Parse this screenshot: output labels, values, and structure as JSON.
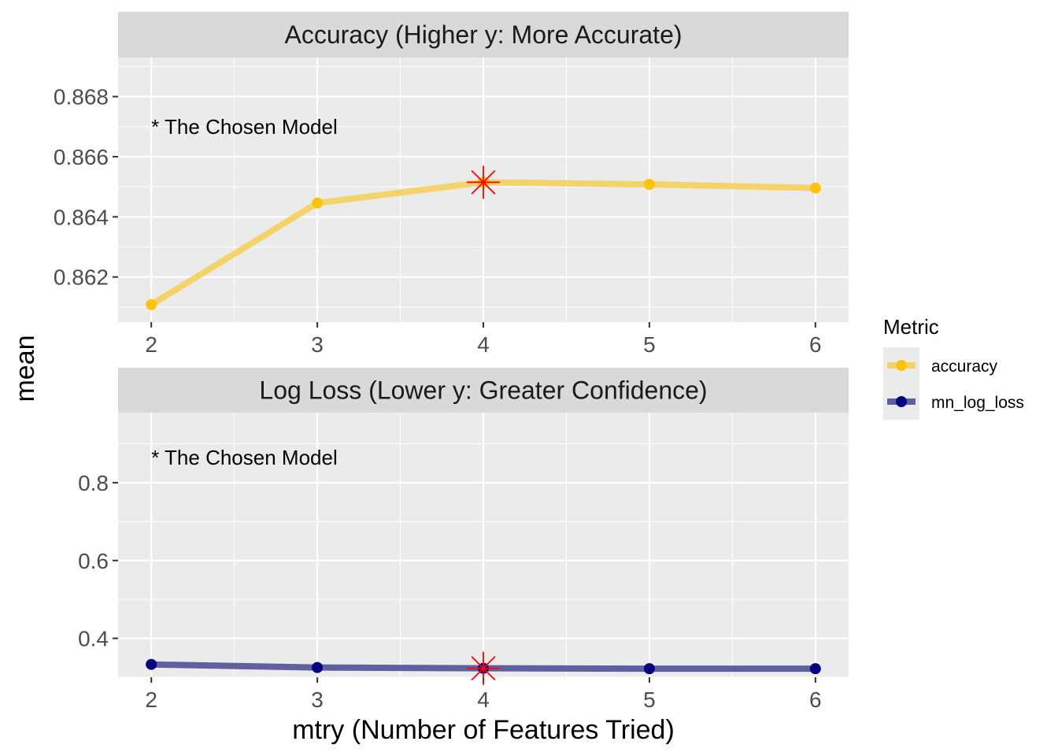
{
  "chart_data": {
    "type": "line",
    "xlabel": "mtry (Number of Features Tried)",
    "ylabel": "mean",
    "legend": {
      "title": "Metric",
      "position": "right",
      "entries": [
        {
          "label": "accuracy",
          "color": "#F5D36B",
          "point_color": "#FFC20E"
        },
        {
          "label": "mn_log_loss",
          "color": "#6060A0",
          "point_color": "#000080"
        }
      ]
    },
    "marker_color": "#FF0000",
    "panels": [
      {
        "title": "Accuracy (Higher y: More Accurate)",
        "series": "accuracy",
        "x": [
          2,
          3,
          4,
          5,
          6
        ],
        "y": [
          0.86108,
          0.86446,
          0.86515,
          0.86508,
          0.86496
        ],
        "ylim": [
          0.8605,
          0.8693
        ],
        "yticks": [
          0.862,
          0.864,
          0.866,
          0.868
        ],
        "ytick_labels": [
          "0.862",
          "0.864",
          "0.866",
          "0.868"
        ],
        "xticks": [
          2,
          3,
          4,
          5,
          6
        ],
        "xlim": [
          1.8,
          6.2
        ],
        "chosen_x": 4,
        "annotation": "* The Chosen Model",
        "annotation_x": 2,
        "annotation_y": 0.867
      },
      {
        "title": "Log Loss (Lower y: Greater Confidence)",
        "series": "mn_log_loss",
        "x": [
          2,
          3,
          4,
          5,
          6
        ],
        "y": [
          0.333,
          0.325,
          0.323,
          0.322,
          0.322
        ],
        "ylim": [
          0.3,
          0.98
        ],
        "yticks": [
          0.4,
          0.6,
          0.8
        ],
        "ytick_labels": [
          "0.4",
          "0.6",
          "0.8"
        ],
        "xticks": [
          2,
          3,
          4,
          5,
          6
        ],
        "xlim": [
          1.8,
          6.2
        ],
        "chosen_x": 4,
        "annotation": "* The Chosen Model",
        "annotation_x": 2,
        "annotation_y": 0.865
      }
    ]
  }
}
